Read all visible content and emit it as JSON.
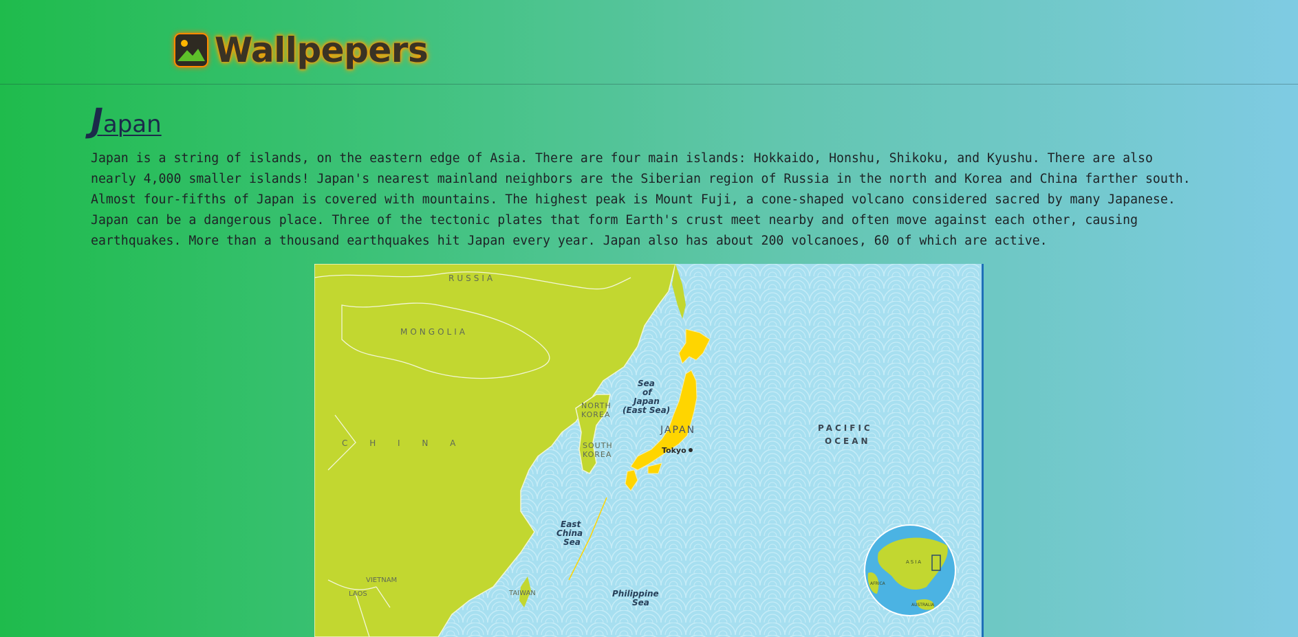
{
  "site": {
    "logo_text": "Wallpepers",
    "logo_icon": "image-icon"
  },
  "article": {
    "title_initial": "J",
    "title_rest": "apan",
    "paragraph": "Japan is a string of islands, on the eastern edge of Asia. There are four main islands: Hokkaido, Honshu, Shikoku, and Kyushu. There are also\nnearly 4,000 smaller islands! Japan's nearest mainland neighbors are the Siberian region of Russia in the north and Korea and China farther south.\nAlmost four-fifths of Japan is covered with mountains. The highest peak is Mount Fuji, a cone-shaped volcano considered sacred by many Japanese.\nJapan can be a dangerous place. Three of the tectonic plates that form Earth's crust meet nearby and often move against each other, causing\nearthquakes. More than a thousand earthquakes hit Japan every year. Japan also has about 200 volcanoes, 60 of which are active."
  },
  "map": {
    "labels": {
      "russia": "RUSSIA",
      "mongolia": "MONGOLIA",
      "china": "C H I N A",
      "north_korea_1": "NORTH",
      "north_korea_2": "KOREA",
      "south_korea_1": "SOUTH",
      "south_korea_2": "KOREA",
      "japan": "JAPAN",
      "tokyo": "Tokyo",
      "sea_japan_1": "Sea",
      "sea_japan_2": "of",
      "sea_japan_3": "Japan",
      "sea_japan_4": "(East Sea)",
      "pacific_1": "PACIFIC",
      "pacific_2": "OCEAN",
      "east_china_1": "East",
      "east_china_2": "China",
      "east_china_3": "Sea",
      "philippine_1": "Philippine",
      "philippine_2": "Sea",
      "taiwan": "TAIWAN",
      "vietnam": "VIETNAM",
      "laos": "LAOS",
      "globe_asia": "ASIA",
      "globe_africa": "AFRICA",
      "globe_australia": "AUSTRALIA"
    },
    "colors": {
      "land": "#c2d730",
      "ocean": "#a7dff0",
      "japan": "#ffd500"
    }
  }
}
